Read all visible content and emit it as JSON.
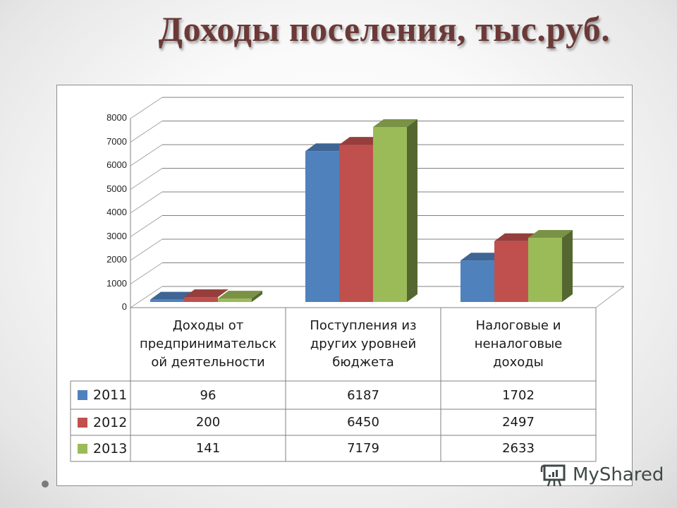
{
  "slide": {
    "title": "Доходы поселения, тыс.руб."
  },
  "watermark": {
    "text": "MyShared",
    "icon": "presentation-board-icon"
  },
  "colors": {
    "series_2011": "#4f81bd",
    "series_2012": "#c0504d",
    "series_2013": "#9bbb59",
    "title": "#6b3a38",
    "gridline": "#808080"
  },
  "y_axis": {
    "ticks": [
      "0",
      "1000",
      "2000",
      "3000",
      "4000",
      "5000",
      "6000",
      "7000",
      "8000"
    ]
  },
  "table": {
    "headers": [
      [
        "Доходы от",
        "предпринимательск",
        "ой деятельности"
      ],
      [
        "Поступления из",
        "других уровней",
        "бюджета"
      ],
      [
        "Налоговые и",
        "неналоговые",
        "доходы"
      ]
    ],
    "rows": [
      {
        "label": "2011",
        "values": [
          "96",
          "6187",
          "1702"
        ]
      },
      {
        "label": "2012",
        "values": [
          "200",
          "6450",
          "2497"
        ]
      },
      {
        "label": "2013",
        "values": [
          "141",
          "7179",
          "2633"
        ]
      }
    ]
  },
  "chart_data": {
    "type": "bar",
    "subtype": "3d-clustered-column-with-data-table",
    "title": "Доходы поселения, тыс.руб.",
    "categories": [
      "Доходы от предпринимательской деятельности",
      "Поступления из других уровней бюджета",
      "Налоговые и неналоговые доходы"
    ],
    "series": [
      {
        "name": "2011",
        "color": "#4f81bd",
        "values": [
          96,
          6187,
          1702
        ]
      },
      {
        "name": "2012",
        "color": "#c0504d",
        "values": [
          200,
          6450,
          2497
        ]
      },
      {
        "name": "2013",
        "color": "#9bbb59",
        "values": [
          141,
          7179,
          2633
        ]
      }
    ],
    "xlabel": "",
    "ylabel": "",
    "ylim": [
      0,
      8000
    ],
    "yticks": [
      0,
      1000,
      2000,
      3000,
      4000,
      5000,
      6000,
      7000,
      8000
    ],
    "grid": true,
    "legend_position": "data-table-left"
  }
}
